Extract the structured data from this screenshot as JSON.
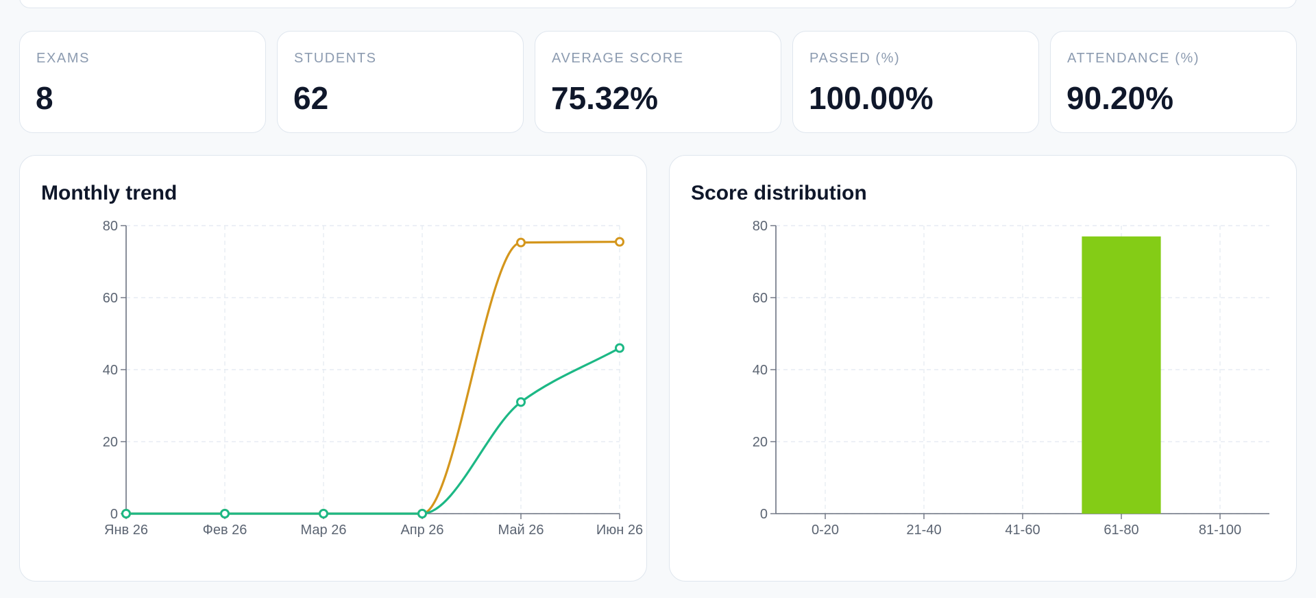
{
  "stats": [
    {
      "label": "EXAMS",
      "value": "8"
    },
    {
      "label": "STUDENTS",
      "value": "62"
    },
    {
      "label": "AVERAGE SCORE",
      "value": "75.32%"
    },
    {
      "label": "PASSED (%)",
      "value": "100.00%"
    },
    {
      "label": "ATTENDANCE (%)",
      "value": "90.20%"
    }
  ],
  "charts": {
    "trend_title": "Monthly trend",
    "distribution_title": "Score distribution"
  },
  "colors": {
    "series_orange": "#d4961c",
    "series_green": "#1cb885",
    "bar_green": "#84cc16"
  },
  "chart_data": [
    {
      "type": "line",
      "title": "Monthly trend",
      "categories": [
        "Янв 26",
        "Фев 26",
        "Мар 26",
        "Апр 26",
        "Май 26",
        "Июн 26"
      ],
      "series": [
        {
          "values": [
            0,
            0,
            0,
            0,
            75.3,
            75.5
          ],
          "color": "#d4961c"
        },
        {
          "values": [
            0,
            0,
            0,
            0,
            31,
            46
          ],
          "color": "#1cb885"
        }
      ],
      "ylim": [
        0,
        80
      ],
      "yticks": [
        0,
        20,
        40,
        60,
        80
      ],
      "grid": true
    },
    {
      "type": "bar",
      "title": "Score distribution",
      "categories": [
        "0-20",
        "21-40",
        "41-60",
        "61-80",
        "81-100"
      ],
      "values": [
        0,
        0,
        0,
        77,
        0
      ],
      "ylim": [
        0,
        80
      ],
      "yticks": [
        0,
        20,
        40,
        60,
        80
      ],
      "grid": true,
      "color": "#84cc16"
    }
  ]
}
